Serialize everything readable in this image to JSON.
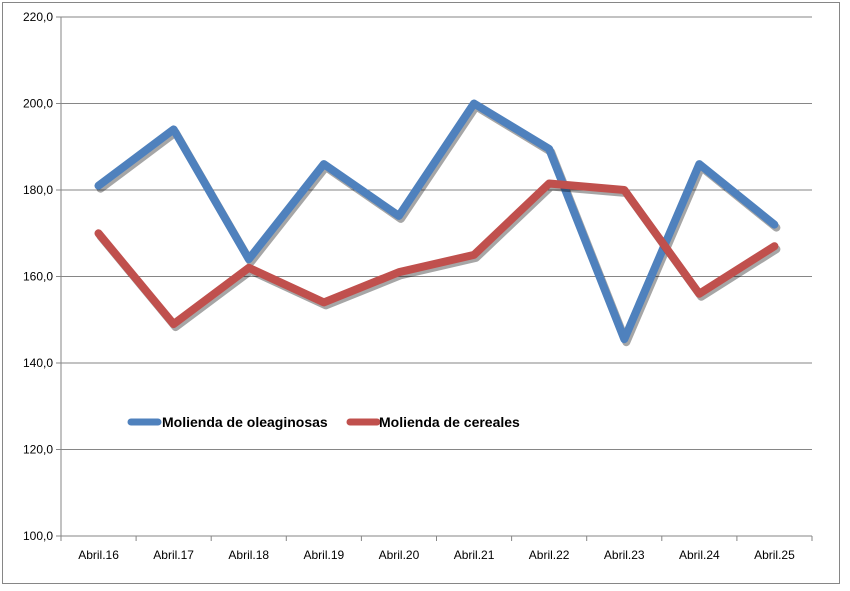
{
  "chart_data": {
    "type": "line",
    "title": "",
    "xlabel": "",
    "ylabel": "",
    "categories": [
      "Abril.16",
      "Abril.17",
      "Abril.18",
      "Abril.19",
      "Abril.20",
      "Abril.21",
      "Abril.22",
      "Abril.23",
      "Abril.24",
      "Abril.25"
    ],
    "ylim": [
      100,
      220
    ],
    "yticks": [
      100,
      120,
      140,
      160,
      180,
      200,
      220
    ],
    "ytick_labels": [
      "100,0",
      "120,0",
      "140,0",
      "160,0",
      "180,0",
      "200,0",
      "220,0"
    ],
    "grid": true,
    "legend_position": "inside-left",
    "series": [
      {
        "name": "Molienda de oleaginosas",
        "color": "#4F81BD",
        "values": [
          181,
          194,
          164,
          186,
          174,
          200,
          189.5,
          145.5,
          186,
          172
        ]
      },
      {
        "name": "Molienda de cereales",
        "color": "#C0504D",
        "values": [
          170,
          149,
          162,
          154,
          161,
          165,
          181.5,
          180,
          156,
          167
        ]
      }
    ]
  }
}
